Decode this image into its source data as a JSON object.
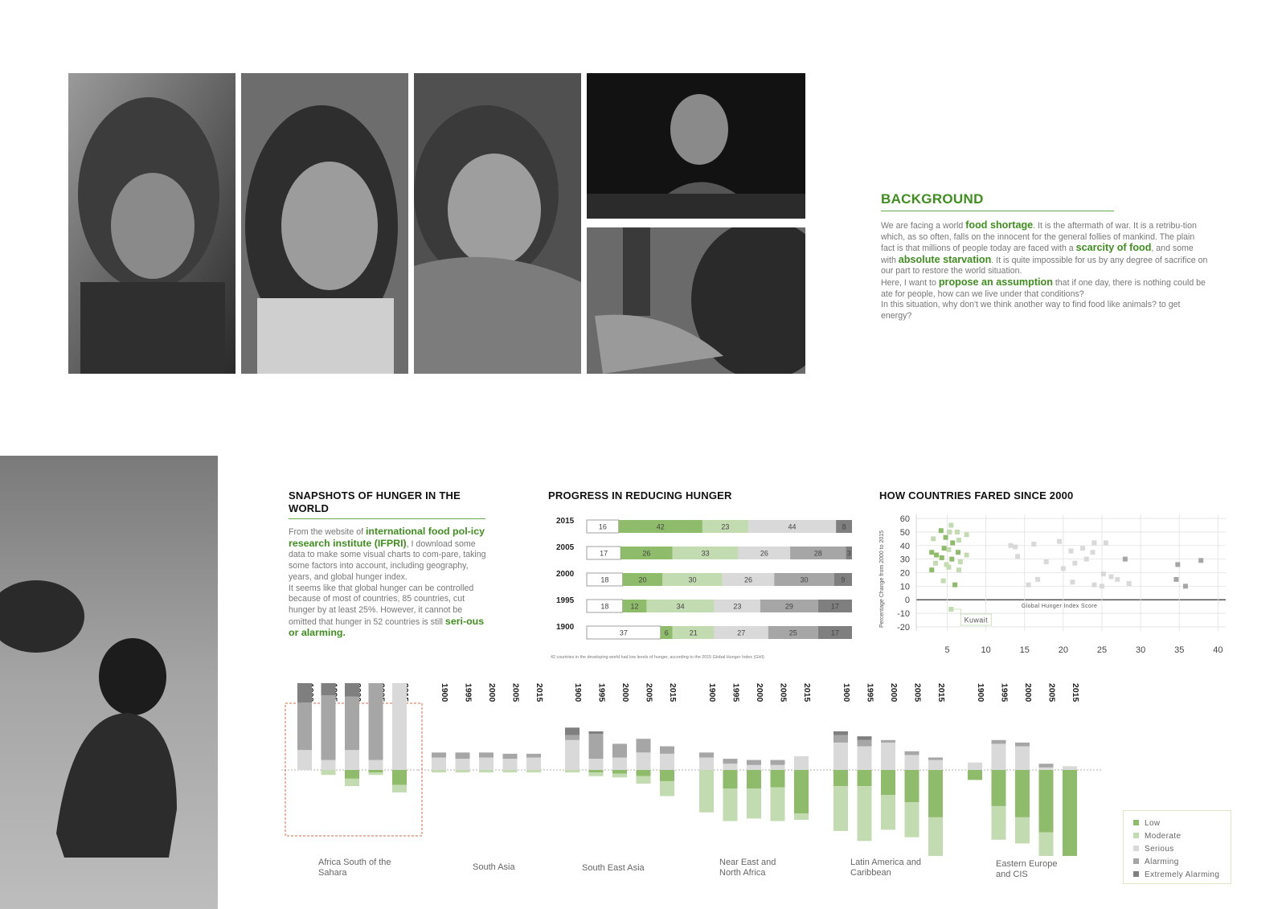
{
  "colors": {
    "accent_green": "#3f8f1f",
    "low": "#8fbc6a",
    "moderate": "#c3dbb0",
    "serious": "#d9d9d9",
    "alarming": "#a6a6a6",
    "extremely_alarming": "#7f7f7f"
  },
  "photos": [
    {
      "name": "hooded-child-photo"
    },
    {
      "name": "girl-with-necklace-photo"
    },
    {
      "name": "girl-eating-watermelon-photo"
    },
    {
      "name": "boy-at-table-photo"
    },
    {
      "name": "drinking-from-tap-photo"
    },
    {
      "name": "crouching-child-photo"
    }
  ],
  "background": {
    "title": "BACKGROUND",
    "p1_a": "We are facing a world ",
    "p1_h1": "food shortage",
    "p1_b": ". It is the aftermath of war. It is a retribu-tion which, as so often, falls on the innocent for the general follies of mankind. The plain fact is that millions of people today are faced with a ",
    "p1_h2": "scarcity of food",
    "p1_c": ", and some with ",
    "p1_h3": "absolute starvation",
    "p1_d": ". It is quite impossible for us by any degree of sacrifice on our part to restore the world situation.",
    "p2_a": "Here, I want to ",
    "p2_h1": "propose an assumption",
    "p2_b": " that if one day, there is nothing could be ate for people, how can we live under that conditions?",
    "p3": "In this situation, why don't we think another way to find food like animals? to get energy?"
  },
  "snapshots": {
    "title": "SNAPSHOTS OF HUNGER IN THE WORLD",
    "t1": "From the website of ",
    "h1": "international food pol-icy research institute (IFPRI)",
    "t2": ", I download some data to make some visual charts to com-pare, taking some factors into account, including geography, years, and global hunger index.",
    "t3": "It seems like that global hunger can be controlled because of most of countries, 85 countries, cut hunger by at least 25%. However, it cannot be omitted that hunger in 52 countries is still ",
    "h2": "seri-ous or alarming."
  },
  "chart_data": [
    {
      "type": "bar",
      "stacked": true,
      "orientation": "horizontal",
      "title": "PROGRESS IN REDUCING HUNGER",
      "categories": [
        "2015",
        "2005",
        "2000",
        "1995",
        "1900"
      ],
      "series": [
        {
          "key": "below",
          "values": [
            16,
            17,
            18,
            18,
            37
          ]
        },
        {
          "key": "low",
          "values": [
            42,
            26,
            20,
            12,
            6
          ]
        },
        {
          "key": "moderate",
          "values": [
            23,
            33,
            30,
            34,
            21
          ]
        },
        {
          "key": "serious",
          "values": [
            44,
            26,
            26,
            23,
            27
          ]
        },
        {
          "key": "alarming",
          "values": [
            0,
            28,
            30,
            29,
            25
          ]
        },
        {
          "key": "extremely_alarming",
          "values": [
            8,
            3,
            9,
            17,
            17
          ]
        }
      ],
      "note": "42 countries in the developing world had low levels of hunger, according to the 2015 Global Hunger Index (GHI)"
    },
    {
      "type": "scatter",
      "title": "HOW COUNTRIES FARED SINCE 2000",
      "xlabel": "Global Hunger Index Score",
      "ylabel": "Percentage Change from 2000 to 2015",
      "xlim": [
        1,
        41
      ],
      "ylim": [
        -23,
        63
      ],
      "xticks": [
        5,
        10,
        15,
        20,
        25,
        30,
        35,
        40
      ],
      "yticks": [
        60,
        50,
        40,
        30,
        20,
        10,
        0,
        -10,
        -20
      ],
      "grid": true,
      "annotation": {
        "label": "Kuwait",
        "x": 5.5,
        "y": -7
      },
      "points": [
        {
          "x": 5.5,
          "y": 55,
          "c": "moderate"
        },
        {
          "x": 4.2,
          "y": 51,
          "c": "low"
        },
        {
          "x": 5.3,
          "y": 50,
          "c": "moderate"
        },
        {
          "x": 6.3,
          "y": 50,
          "c": "moderate"
        },
        {
          "x": 7.5,
          "y": 48,
          "c": "moderate"
        },
        {
          "x": 4.8,
          "y": 46,
          "c": "low"
        },
        {
          "x": 3.2,
          "y": 45,
          "c": "moderate"
        },
        {
          "x": 6.5,
          "y": 44,
          "c": "moderate"
        },
        {
          "x": 5.7,
          "y": 42,
          "c": "low"
        },
        {
          "x": 4.6,
          "y": 38,
          "c": "low"
        },
        {
          "x": 5.2,
          "y": 37,
          "c": "moderate"
        },
        {
          "x": 3.0,
          "y": 35,
          "c": "low"
        },
        {
          "x": 6.4,
          "y": 35,
          "c": "low"
        },
        {
          "x": 3.6,
          "y": 33,
          "c": "low"
        },
        {
          "x": 7.5,
          "y": 33,
          "c": "moderate"
        },
        {
          "x": 4.3,
          "y": 31,
          "c": "low"
        },
        {
          "x": 5.6,
          "y": 30,
          "c": "low"
        },
        {
          "x": 6.7,
          "y": 28,
          "c": "moderate"
        },
        {
          "x": 3.5,
          "y": 27,
          "c": "moderate"
        },
        {
          "x": 4.9,
          "y": 26,
          "c": "moderate"
        },
        {
          "x": 5.2,
          "y": 24,
          "c": "moderate"
        },
        {
          "x": 3.0,
          "y": 22,
          "c": "low"
        },
        {
          "x": 6.5,
          "y": 22,
          "c": "moderate"
        },
        {
          "x": 4.5,
          "y": 14,
          "c": "moderate"
        },
        {
          "x": 6.0,
          "y": 11,
          "c": "low"
        },
        {
          "x": 5.5,
          "y": -7,
          "c": "moderate"
        },
        {
          "x": 13.2,
          "y": 40,
          "c": "serious"
        },
        {
          "x": 13.8,
          "y": 39,
          "c": "serious"
        },
        {
          "x": 16.2,
          "y": 41,
          "c": "serious"
        },
        {
          "x": 19.5,
          "y": 43,
          "c": "serious"
        },
        {
          "x": 14.1,
          "y": 32,
          "c": "serious"
        },
        {
          "x": 21.0,
          "y": 36,
          "c": "serious"
        },
        {
          "x": 22.5,
          "y": 38,
          "c": "serious"
        },
        {
          "x": 24.0,
          "y": 42,
          "c": "serious"
        },
        {
          "x": 25.5,
          "y": 42,
          "c": "serious"
        },
        {
          "x": 23.8,
          "y": 35,
          "c": "serious"
        },
        {
          "x": 17.8,
          "y": 28,
          "c": "serious"
        },
        {
          "x": 21.5,
          "y": 27,
          "c": "serious"
        },
        {
          "x": 20.0,
          "y": 23,
          "c": "serious"
        },
        {
          "x": 23.0,
          "y": 30,
          "c": "serious"
        },
        {
          "x": 25.2,
          "y": 19,
          "c": "serious"
        },
        {
          "x": 15.5,
          "y": 11,
          "c": "serious"
        },
        {
          "x": 16.7,
          "y": 15,
          "c": "serious"
        },
        {
          "x": 21.2,
          "y": 13,
          "c": "serious"
        },
        {
          "x": 24.0,
          "y": 11,
          "c": "serious"
        },
        {
          "x": 27.0,
          "y": 15,
          "c": "serious"
        },
        {
          "x": 26.2,
          "y": 17,
          "c": "serious"
        },
        {
          "x": 28.5,
          "y": 12,
          "c": "serious"
        },
        {
          "x": 25.0,
          "y": 10,
          "c": "serious"
        },
        {
          "x": 28.0,
          "y": 30,
          "c": "alarming"
        },
        {
          "x": 34.8,
          "y": 26,
          "c": "alarming"
        },
        {
          "x": 37.8,
          "y": 29,
          "c": "alarming"
        },
        {
          "x": 34.6,
          "y": 15,
          "c": "alarming"
        },
        {
          "x": 35.8,
          "y": 10,
          "c": "alarming"
        }
      ]
    },
    {
      "type": "bar",
      "stacked": true,
      "diverging": true,
      "regions": [
        {
          "name": "Africa South of the Sahara",
          "highlight": true,
          "years": [
            {
              "y": "1900",
              "ea": 26,
              "al": 38,
              "se": 16,
              "mo": 0,
              "lo": 0
            },
            {
              "y": "1995",
              "ea": 24,
              "al": 52,
              "se": 8,
              "mo": 4,
              "lo": 0
            },
            {
              "y": "2000",
              "ea": 22,
              "al": 43,
              "se": 16,
              "mo": 6,
              "lo": 7
            },
            {
              "y": "2005",
              "ea": 9,
              "al": 66,
              "se": 8,
              "mo": 2,
              "lo": 2
            },
            {
              "y": "2015",
              "ea": 0,
              "al": 9,
              "se": 72,
              "mo": 6,
              "lo": 12
            }
          ]
        },
        {
          "name": "South Asia",
          "highlight": false,
          "years": [
            {
              "y": "1900",
              "ea": 0,
              "al": 4,
              "se": 10,
              "mo": 2,
              "lo": 0
            },
            {
              "y": "1995",
              "ea": 0,
              "al": 5,
              "se": 9,
              "mo": 2,
              "lo": 0
            },
            {
              "y": "2000",
              "ea": 0,
              "al": 4,
              "se": 10,
              "mo": 2,
              "lo": 0
            },
            {
              "y": "2005",
              "ea": 0,
              "al": 4,
              "se": 9,
              "mo": 2,
              "lo": 0
            },
            {
              "y": "2015",
              "ea": 0,
              "al": 3,
              "se": 10,
              "mo": 2,
              "lo": 0
            }
          ]
        },
        {
          "name": "South East Asia",
          "highlight": false,
          "years": [
            {
              "y": "1900",
              "ea": 6,
              "al": 4,
              "se": 24,
              "mo": 2,
              "lo": 0
            },
            {
              "y": "1995",
              "ea": 2,
              "al": 20,
              "se": 9,
              "mo": 3,
              "lo": 2
            },
            {
              "y": "2000",
              "ea": 0,
              "al": 11,
              "se": 10,
              "mo": 3,
              "lo": 3
            },
            {
              "y": "2005",
              "ea": 0,
              "al": 11,
              "se": 14,
              "mo": 6,
              "lo": 5
            },
            {
              "y": "2015",
              "ea": 0,
              "al": 6,
              "se": 13,
              "mo": 12,
              "lo": 9
            }
          ]
        },
        {
          "name": "Near East and North Africa",
          "highlight": false,
          "years": [
            {
              "y": "1900",
              "ea": 0,
              "al": 4,
              "se": 10,
              "mo": 34,
              "lo": 0
            },
            {
              "y": "1995",
              "ea": 0,
              "al": 4,
              "se": 5,
              "mo": 26,
              "lo": 15
            },
            {
              "y": "2000",
              "ea": 0,
              "al": 4,
              "se": 4,
              "mo": 24,
              "lo": 15
            },
            {
              "y": "2005",
              "ea": 0,
              "al": 4,
              "se": 4,
              "mo": 27,
              "lo": 14
            },
            {
              "y": "2015",
              "ea": 0,
              "al": 0,
              "se": 11,
              "mo": 5,
              "lo": 35
            }
          ]
        },
        {
          "name": "Latin America and Caribbean",
          "highlight": false,
          "years": [
            {
              "y": "1900",
              "ea": 3,
              "al": 6,
              "se": 22,
              "mo": 36,
              "lo": 13
            },
            {
              "y": "1995",
              "ea": 3,
              "al": 5,
              "se": 19,
              "mo": 44,
              "lo": 13
            },
            {
              "y": "2000",
              "ea": 0,
              "al": 2,
              "se": 22,
              "mo": 28,
              "lo": 20
            },
            {
              "y": "2005",
              "ea": 0,
              "al": 3,
              "se": 12,
              "mo": 28,
              "lo": 26
            },
            {
              "y": "2015",
              "ea": 0,
              "al": 2,
              "se": 8,
              "mo": 40,
              "lo": 38
            }
          ]
        },
        {
          "name": "Eastern Europe and CIS",
          "highlight": false,
          "years": [
            {
              "y": "1900",
              "ea": 0,
              "al": 0,
              "se": 6,
              "mo": 0,
              "lo": 8
            },
            {
              "y": "1995",
              "ea": 0,
              "al": 3,
              "se": 21,
              "mo": 27,
              "lo": 29
            },
            {
              "y": "2000",
              "ea": 0,
              "al": 3,
              "se": 19,
              "mo": 21,
              "lo": 38
            },
            {
              "y": "2005",
              "ea": 0,
              "al": 3,
              "se": 2,
              "mo": 30,
              "lo": 50
            },
            {
              "y": "2015",
              "ea": 0,
              "al": 0,
              "se": 3,
              "mo": 20,
              "lo": 72
            }
          ]
        }
      ]
    }
  ],
  "legend": {
    "items": [
      {
        "label": "Low",
        "key": "low"
      },
      {
        "label": "Moderate",
        "key": "moderate"
      },
      {
        "label": "Serious",
        "key": "serious"
      },
      {
        "label": "Alarming",
        "key": "alarming"
      },
      {
        "label": "Extremely Alarming",
        "key": "extremely_alarming"
      }
    ]
  },
  "region_labels": {
    "africa_1": "Africa South of the",
    "africa_2": "Sahara",
    "south_asia": "South Asia",
    "south_east_asia": "South East Asia",
    "near_east_1": "Near East and",
    "near_east_2": "North Africa",
    "latam_1": "Latin America and",
    "latam_2": "Caribbean",
    "eeurope_1": "Eastern Europe",
    "eeurope_2": "and CIS"
  }
}
